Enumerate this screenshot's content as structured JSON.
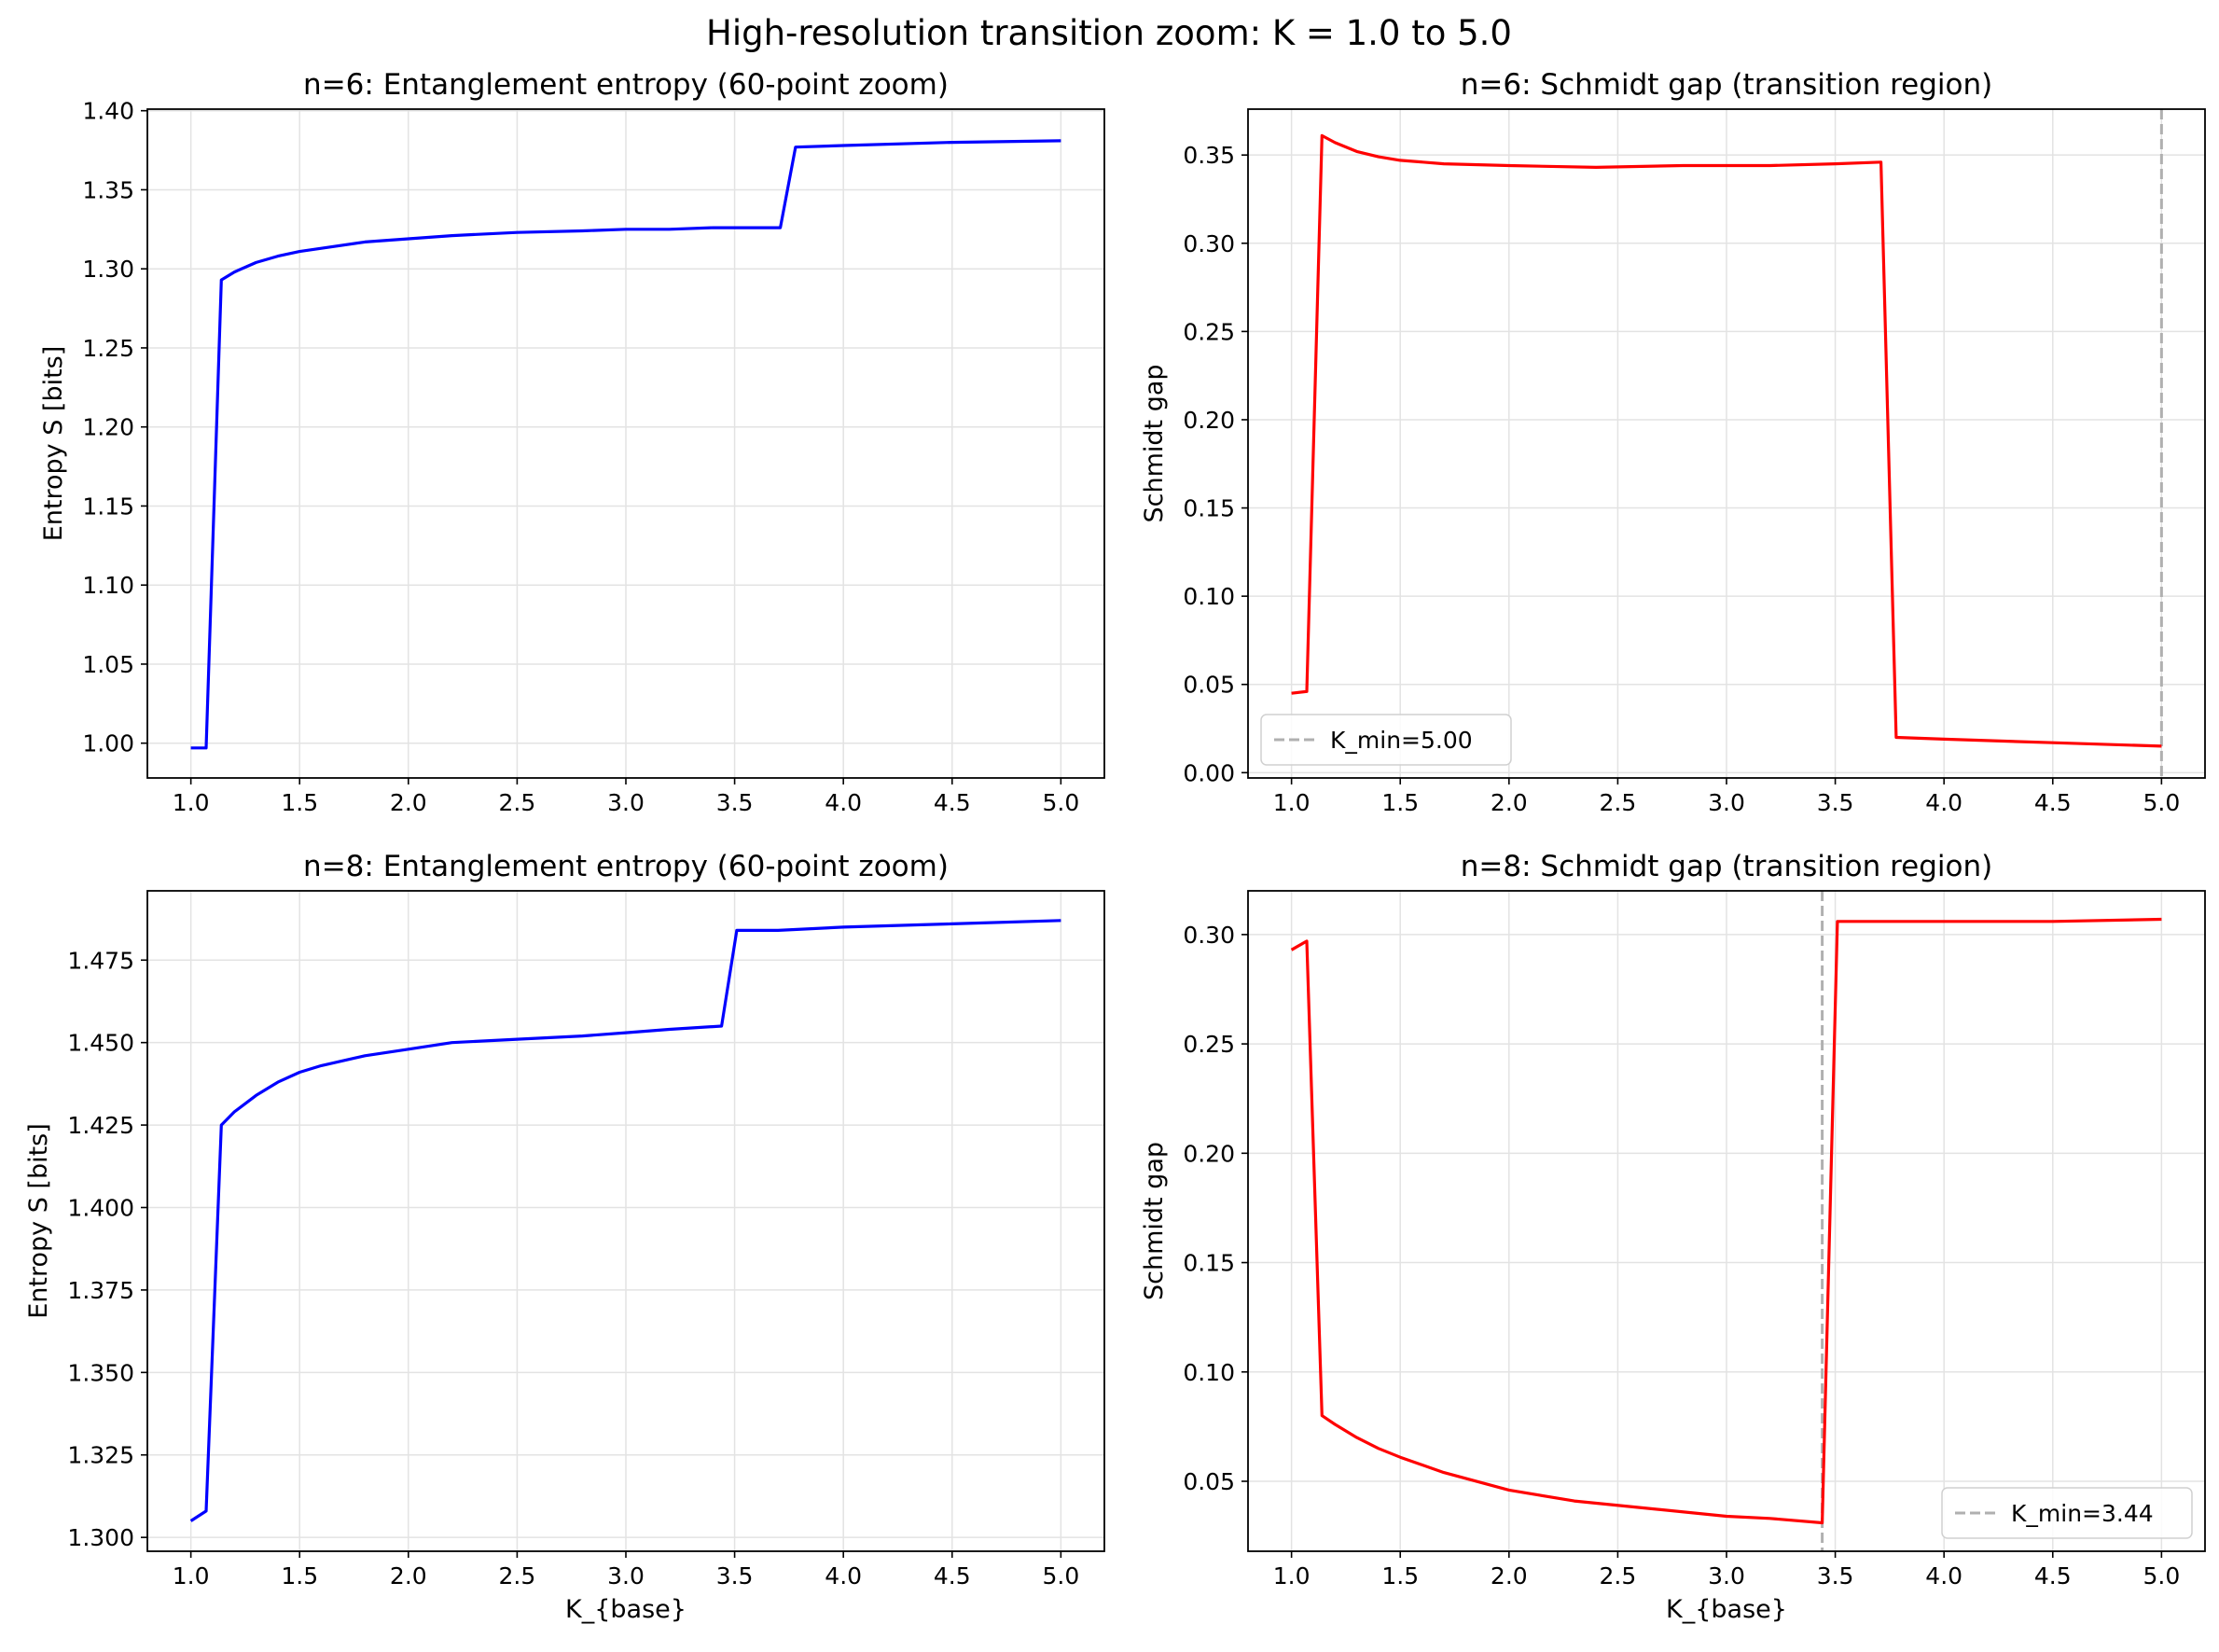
{
  "figure": {
    "suptitle": "High-resolution transition zoom: K = 1.0 to 5.0"
  },
  "chart_data": [
    {
      "id": "p1",
      "type": "line",
      "title": "n=6: Entanglement entropy (60-point zoom)",
      "xlabel": "",
      "ylabel": "Entropy S [bits]",
      "xlim": [
        0.8,
        5.2
      ],
      "ylim": [
        0.978,
        1.401
      ],
      "xticks": [
        1.0,
        1.5,
        2.0,
        2.5,
        3.0,
        3.5,
        4.0,
        4.5,
        5.0
      ],
      "xtick_labels": [
        "1.0",
        "1.5",
        "2.0",
        "2.5",
        "3.0",
        "3.5",
        "4.0",
        "4.5",
        "5.0"
      ],
      "yticks": [
        1.0,
        1.05,
        1.1,
        1.15,
        1.2,
        1.25,
        1.3,
        1.35,
        1.4
      ],
      "ytick_labels": [
        "1.00",
        "1.05",
        "1.10",
        "1.15",
        "1.20",
        "1.25",
        "1.30",
        "1.35",
        "1.40"
      ],
      "grid": true,
      "series": [
        {
          "color": "#0000ff",
          "x": [
            1.0,
            1.07,
            1.14,
            1.2,
            1.3,
            1.4,
            1.5,
            1.6,
            1.8,
            2.0,
            2.2,
            2.5,
            2.8,
            3.0,
            3.2,
            3.4,
            3.6,
            3.71,
            3.78,
            4.0,
            4.5,
            5.0
          ],
          "y": [
            0.997,
            0.997,
            1.293,
            1.298,
            1.304,
            1.308,
            1.311,
            1.313,
            1.317,
            1.319,
            1.321,
            1.323,
            1.324,
            1.325,
            1.325,
            1.326,
            1.326,
            1.326,
            1.377,
            1.378,
            1.38,
            1.381
          ]
        }
      ]
    },
    {
      "id": "p2",
      "type": "line",
      "title": "n=6: Schmidt gap (transition region)",
      "xlabel": "",
      "ylabel": "Schmidt gap",
      "xlim": [
        0.8,
        5.2
      ],
      "ylim": [
        -0.003,
        0.376
      ],
      "xticks": [
        1.0,
        1.5,
        2.0,
        2.5,
        3.0,
        3.5,
        4.0,
        4.5,
        5.0
      ],
      "xtick_labels": [
        "1.0",
        "1.5",
        "2.0",
        "2.5",
        "3.0",
        "3.5",
        "4.0",
        "4.5",
        "5.0"
      ],
      "yticks": [
        0.0,
        0.05,
        0.1,
        0.15,
        0.2,
        0.25,
        0.3,
        0.35
      ],
      "ytick_labels": [
        "0.00",
        "0.05",
        "0.10",
        "0.15",
        "0.20",
        "0.25",
        "0.30",
        "0.35"
      ],
      "grid": true,
      "series": [
        {
          "color": "#ff0000",
          "x": [
            1.0,
            1.07,
            1.14,
            1.2,
            1.3,
            1.4,
            1.5,
            1.7,
            2.0,
            2.4,
            2.8,
            3.2,
            3.5,
            3.71,
            3.78,
            4.0,
            4.5,
            5.0
          ],
          "y": [
            0.045,
            0.046,
            0.361,
            0.357,
            0.352,
            0.349,
            0.347,
            0.345,
            0.344,
            0.343,
            0.344,
            0.344,
            0.345,
            0.346,
            0.02,
            0.019,
            0.017,
            0.015
          ]
        }
      ],
      "vline": {
        "x": 5.0,
        "color": "#b0b0b0",
        "style": "dashed"
      },
      "legend": {
        "label": "K_min=5.00",
        "loc": "lower-left"
      }
    },
    {
      "id": "p3",
      "type": "line",
      "title": "n=8: Entanglement entropy (60-point zoom)",
      "xlabel": "K_{base}",
      "ylabel": "Entropy S [bits]",
      "xlim": [
        0.8,
        5.2
      ],
      "ylim": [
        1.2958,
        1.496
      ],
      "xticks": [
        1.0,
        1.5,
        2.0,
        2.5,
        3.0,
        3.5,
        4.0,
        4.5,
        5.0
      ],
      "xtick_labels": [
        "1.0",
        "1.5",
        "2.0",
        "2.5",
        "3.0",
        "3.5",
        "4.0",
        "4.5",
        "5.0"
      ],
      "yticks": [
        1.3,
        1.325,
        1.35,
        1.375,
        1.4,
        1.425,
        1.45,
        1.475
      ],
      "ytick_labels": [
        "1.300",
        "1.325",
        "1.350",
        "1.375",
        "1.400",
        "1.425",
        "1.450",
        "1.475"
      ],
      "grid": true,
      "series": [
        {
          "color": "#0000ff",
          "x": [
            1.0,
            1.07,
            1.14,
            1.2,
            1.3,
            1.4,
            1.5,
            1.6,
            1.8,
            2.0,
            2.2,
            2.5,
            2.8,
            3.0,
            3.2,
            3.44,
            3.51,
            3.7,
            4.0,
            4.5,
            5.0
          ],
          "y": [
            1.305,
            1.308,
            1.425,
            1.429,
            1.434,
            1.438,
            1.441,
            1.443,
            1.446,
            1.448,
            1.45,
            1.451,
            1.452,
            1.453,
            1.454,
            1.455,
            1.484,
            1.484,
            1.485,
            1.486,
            1.487
          ]
        }
      ]
    },
    {
      "id": "p4",
      "type": "line",
      "title": "n=8: Schmidt gap (transition region)",
      "xlabel": "K_{base}",
      "ylabel": "Schmidt gap",
      "xlim": [
        0.8,
        5.2
      ],
      "ylim": [
        0.018,
        0.32
      ],
      "xticks": [
        1.0,
        1.5,
        2.0,
        2.5,
        3.0,
        3.5,
        4.0,
        4.5,
        5.0
      ],
      "xtick_labels": [
        "1.0",
        "1.5",
        "2.0",
        "2.5",
        "3.0",
        "3.5",
        "4.0",
        "4.5",
        "5.0"
      ],
      "yticks": [
        0.05,
        0.1,
        0.15,
        0.2,
        0.25,
        0.3
      ],
      "ytick_labels": [
        "0.05",
        "0.10",
        "0.15",
        "0.20",
        "0.25",
        "0.30"
      ],
      "grid": true,
      "series": [
        {
          "color": "#ff0000",
          "x": [
            1.0,
            1.07,
            1.14,
            1.2,
            1.3,
            1.4,
            1.5,
            1.7,
            2.0,
            2.3,
            2.6,
            3.0,
            3.2,
            3.44,
            3.51,
            4.0,
            4.5,
            5.0
          ],
          "y": [
            0.293,
            0.297,
            0.08,
            0.076,
            0.07,
            0.065,
            0.061,
            0.054,
            0.046,
            0.041,
            0.038,
            0.034,
            0.033,
            0.031,
            0.306,
            0.306,
            0.306,
            0.307
          ]
        }
      ],
      "vline": {
        "x": 3.44,
        "color": "#b0b0b0",
        "style": "dashed"
      },
      "legend": {
        "label": "K_min=3.44",
        "loc": "lower-right"
      }
    }
  ]
}
